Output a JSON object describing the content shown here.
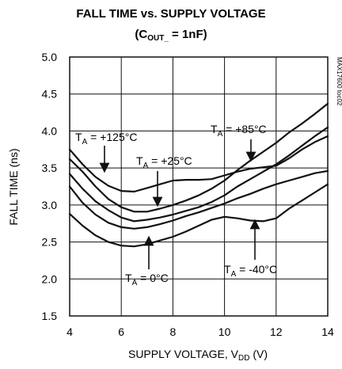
{
  "chart_data": {
    "type": "line",
    "title": "FALL TIME vs. SUPPLY VOLTAGE",
    "subtitle": {
      "open": "(C",
      "sub": "OUT_",
      "close": " = 1nF)"
    },
    "xlabel": {
      "main": "SUPPLY VOLTAGE, V",
      "sub": "DD",
      "tail": " (V)"
    },
    "ylabel": "FALL TIME (ns)",
    "xlim": [
      4,
      14
    ],
    "ylim": [
      1.5,
      5.0
    ],
    "x_ticks": [
      "4",
      "6",
      "8",
      "10",
      "12",
      "14"
    ],
    "y_ticks": [
      "1.5",
      "2.0",
      "2.5",
      "3.0",
      "3.5",
      "4.0",
      "4.5",
      "5.0"
    ],
    "grid": true,
    "side_label": "MAX17600 toc02",
    "series": [
      {
        "name": "T_A = +125°C",
        "x": [
          4.0,
          4.5,
          5.0,
          5.5,
          6.0,
          6.5,
          7.0,
          7.5,
          8.0,
          8.5,
          9.0,
          9.5,
          10.0,
          10.5,
          11.0,
          11.5,
          12.0,
          12.5,
          13.0,
          13.5,
          14.0
        ],
        "y": [
          3.75,
          3.55,
          3.38,
          3.26,
          3.19,
          3.18,
          3.23,
          3.28,
          3.33,
          3.34,
          3.34,
          3.35,
          3.4,
          3.45,
          3.49,
          3.51,
          3.53,
          3.63,
          3.75,
          3.85,
          3.93
        ]
      },
      {
        "name": "T_A = +85°C",
        "x": [
          4.0,
          4.5,
          5.0,
          5.5,
          6.0,
          6.5,
          7.0,
          7.5,
          8.0,
          8.5,
          9.0,
          9.5,
          10.0,
          10.5,
          11.0,
          11.5,
          12.0,
          12.5,
          13.0,
          13.5,
          14.0
        ],
        "y": [
          3.62,
          3.45,
          3.25,
          3.08,
          2.97,
          2.91,
          2.91,
          2.95,
          3.0,
          3.06,
          3.13,
          3.22,
          3.33,
          3.47,
          3.6,
          3.72,
          3.84,
          3.98,
          4.1,
          4.23,
          4.37
        ]
      },
      {
        "name": "T_A = +25°C",
        "x": [
          4.0,
          4.5,
          5.0,
          5.5,
          6.0,
          6.5,
          7.0,
          7.5,
          8.0,
          8.5,
          9.0,
          9.5,
          10.0,
          10.5,
          11.0,
          11.5,
          12.0,
          12.5,
          13.0,
          13.5,
          14.0
        ],
        "y": [
          3.42,
          3.22,
          3.05,
          2.93,
          2.83,
          2.78,
          2.8,
          2.83,
          2.87,
          2.92,
          2.97,
          3.04,
          3.13,
          3.25,
          3.35,
          3.45,
          3.55,
          3.67,
          3.8,
          3.93,
          4.05
        ]
      },
      {
        "name": "T_A = 0°C",
        "x": [
          4.0,
          4.5,
          5.0,
          5.5,
          6.0,
          6.5,
          7.0,
          7.5,
          8.0,
          8.5,
          9.0,
          9.5,
          10.0,
          10.5,
          11.0,
          11.5,
          12.0,
          12.5,
          13.0,
          13.5,
          14.0
        ],
        "y": [
          3.25,
          3.03,
          2.87,
          2.76,
          2.7,
          2.68,
          2.7,
          2.74,
          2.79,
          2.85,
          2.9,
          2.96,
          3.02,
          3.09,
          3.15,
          3.22,
          3.28,
          3.33,
          3.38,
          3.43,
          3.46
        ]
      },
      {
        "name": "T_A = -40°C",
        "x": [
          4.0,
          4.5,
          5.0,
          5.5,
          6.0,
          6.5,
          7.0,
          7.5,
          8.0,
          8.5,
          9.0,
          9.5,
          10.0,
          10.5,
          11.0,
          11.5,
          12.0,
          12.5,
          13.0,
          13.5,
          14.0
        ],
        "y": [
          2.88,
          2.72,
          2.59,
          2.5,
          2.45,
          2.44,
          2.47,
          2.52,
          2.57,
          2.64,
          2.72,
          2.8,
          2.84,
          2.82,
          2.79,
          2.78,
          2.82,
          2.95,
          3.06,
          3.17,
          3.28
        ]
      }
    ],
    "annotations": [
      {
        "series": "T_A = +125°C",
        "pre": "T",
        "sub": "A",
        "post": " = +125°C"
      },
      {
        "series": "T_A = +85°C",
        "pre": "T",
        "sub": "A",
        "post": " = +85°C"
      },
      {
        "series": "T_A = +25°C",
        "pre": "T",
        "sub": "A",
        "post": " = +25°C"
      },
      {
        "series": "T_A = 0°C",
        "pre": "T",
        "sub": "A",
        "post": " = 0°C"
      },
      {
        "series": "T_A = -40°C",
        "pre": "T",
        "sub": "A",
        "post": " = -40°C"
      }
    ]
  }
}
